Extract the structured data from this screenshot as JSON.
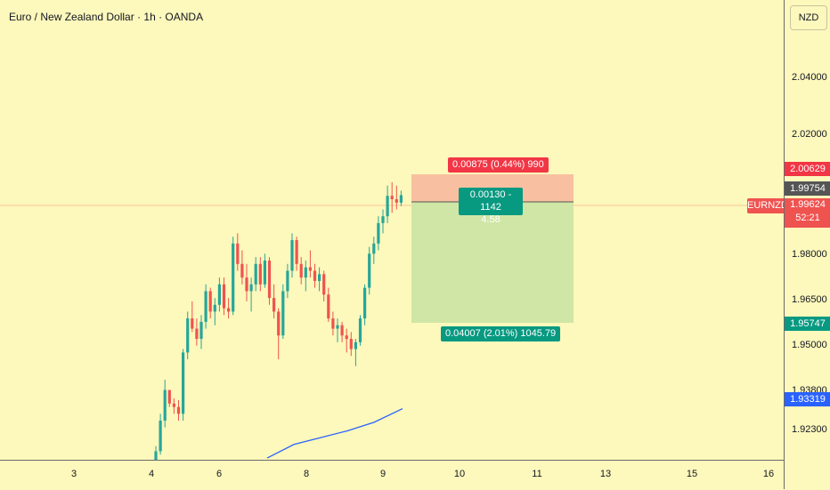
{
  "header": {
    "title": "Euro / New Zealand Dollar · 1h · OANDA"
  },
  "price_axis": {
    "currency_button": "NZD",
    "ticks": [
      "2.04000",
      "2.02000",
      "1.98000",
      "1.96500",
      "1.95000",
      "1.92300"
    ],
    "hidden_tick": "1.93800",
    "badges": {
      "stop": "2.00629",
      "entry": "1.99754",
      "current": "1.99624",
      "countdown": "52:21",
      "target": "1.95747",
      "ma": "1.93319"
    }
  },
  "symbol_tag": "EURNZD",
  "time_axis": {
    "labels": [
      "3",
      "4",
      "6",
      "8",
      "9",
      "10",
      "11",
      "13",
      "15",
      "16"
    ]
  },
  "position_tool": {
    "stop_label": "0.00875 (0.44%) 990",
    "center_line1": "0.00130 - 1142",
    "center_line2": "4.58",
    "target_label": "0.04007 (2.01%) 1045.79"
  },
  "colors": {
    "background": "#fdf8bb",
    "up_candle": "#26a69a",
    "down_candle": "#ef5350",
    "ma_line": "#2962ff",
    "stop_zone": "#f8c0a0",
    "target_zone": "#cfe6a6",
    "stop_badge": "#f23645",
    "entry_badge": "#555555",
    "target_badge": "#089981",
    "ma_badge": "#2962ff"
  },
  "chart_data": {
    "type": "candlestick",
    "symbol": "EURNZD",
    "interval": "1h",
    "x_tick_labels": [
      "3",
      "4",
      "6",
      "8",
      "9",
      "10",
      "11",
      "13",
      "15",
      "16"
    ],
    "ylim": [
      1.9185,
      2.0535
    ],
    "price_ticks": [
      2.04,
      2.02,
      1.98,
      1.965,
      1.95,
      1.923
    ],
    "candles_ohlc": [
      [
        1.918,
        1.9225,
        1.916,
        1.921
      ],
      [
        1.921,
        1.932,
        1.92,
        1.93
      ],
      [
        1.93,
        1.942,
        1.928,
        1.939
      ],
      [
        1.939,
        1.938,
        1.934,
        1.935
      ],
      [
        1.935,
        1.9365,
        1.932,
        1.934
      ],
      [
        1.934,
        1.936,
        1.93,
        1.932
      ],
      [
        1.932,
        1.951,
        1.93,
        1.95
      ],
      [
        1.95,
        1.962,
        1.948,
        1.96
      ],
      [
        1.96,
        1.965,
        1.956,
        1.957
      ],
      [
        1.957,
        1.96,
        1.952,
        1.954
      ],
      [
        1.954,
        1.961,
        1.951,
        1.959
      ],
      [
        1.959,
        1.97,
        1.957,
        1.968
      ],
      [
        1.968,
        1.969,
        1.96,
        1.962
      ],
      [
        1.962,
        1.966,
        1.958,
        1.964
      ],
      [
        1.964,
        1.972,
        1.962,
        1.97
      ],
      [
        1.97,
        1.972,
        1.961,
        1.963
      ],
      [
        1.963,
        1.966,
        1.96,
        1.962
      ],
      [
        1.962,
        1.984,
        1.961,
        1.982
      ],
      [
        1.982,
        1.985,
        1.974,
        1.976
      ],
      [
        1.976,
        1.98,
        1.97,
        1.972
      ],
      [
        1.972,
        1.976,
        1.965,
        1.968
      ],
      [
        1.968,
        1.972,
        1.962,
        1.97
      ],
      [
        1.97,
        1.978,
        1.968,
        1.976
      ],
      [
        1.976,
        1.978,
        1.968,
        1.97
      ],
      [
        1.97,
        1.979,
        1.969,
        1.977
      ],
      [
        1.977,
        1.978,
        1.964,
        1.966
      ],
      [
        1.966,
        1.97,
        1.96,
        1.962
      ],
      [
        1.962,
        1.963,
        1.948,
        1.955
      ],
      [
        1.955,
        1.97,
        1.954,
        1.968
      ],
      [
        1.968,
        1.976,
        1.966,
        1.974
      ],
      [
        1.974,
        1.985,
        1.972,
        1.983
      ],
      [
        1.983,
        1.984,
        1.974,
        1.976
      ],
      [
        1.976,
        1.978,
        1.97,
        1.972
      ],
      [
        1.972,
        1.977,
        1.968,
        1.975
      ],
      [
        1.975,
        1.98,
        1.972,
        1.974
      ],
      [
        1.974,
        1.976,
        1.969,
        1.971
      ],
      [
        1.971,
        1.975,
        1.968,
        1.973
      ],
      [
        1.973,
        1.974,
        1.965,
        1.967
      ],
      [
        1.967,
        1.969,
        1.959,
        1.96
      ],
      [
        1.96,
        1.962,
        1.955,
        1.957
      ],
      [
        1.957,
        1.96,
        1.953,
        1.958
      ],
      [
        1.958,
        1.959,
        1.953,
        1.955
      ],
      [
        1.955,
        1.957,
        1.95,
        1.954
      ],
      [
        1.954,
        1.956,
        1.949,
        1.951
      ],
      [
        1.951,
        1.954,
        1.946,
        1.953
      ],
      [
        1.953,
        1.961,
        1.952,
        1.96
      ],
      [
        1.96,
        1.97,
        1.958,
        1.969
      ],
      [
        1.969,
        1.981,
        1.967,
        1.979
      ],
      [
        1.979,
        1.984,
        1.976,
        1.982
      ],
      [
        1.982,
        1.99,
        1.98,
        1.988
      ],
      [
        1.988,
        1.992,
        1.985,
        1.99
      ],
      [
        1.99,
        1.999,
        1.988,
        1.996
      ],
      [
        1.996,
        2.0,
        1.991,
        1.995
      ],
      [
        1.995,
        1.999,
        1.992,
        1.994
      ],
      [
        1.994,
        1.9975,
        1.993,
        1.9962
      ]
    ],
    "moving_average": [
      [
        300,
        1.919
      ],
      [
        330,
        1.923
      ],
      [
        360,
        1.925
      ],
      [
        390,
        1.927
      ],
      [
        420,
        1.9295
      ],
      [
        452,
        1.9335
      ]
    ],
    "position": {
      "entry": 1.99754,
      "stop": 2.00629,
      "target": 1.95747,
      "current": 1.99624
    }
  }
}
